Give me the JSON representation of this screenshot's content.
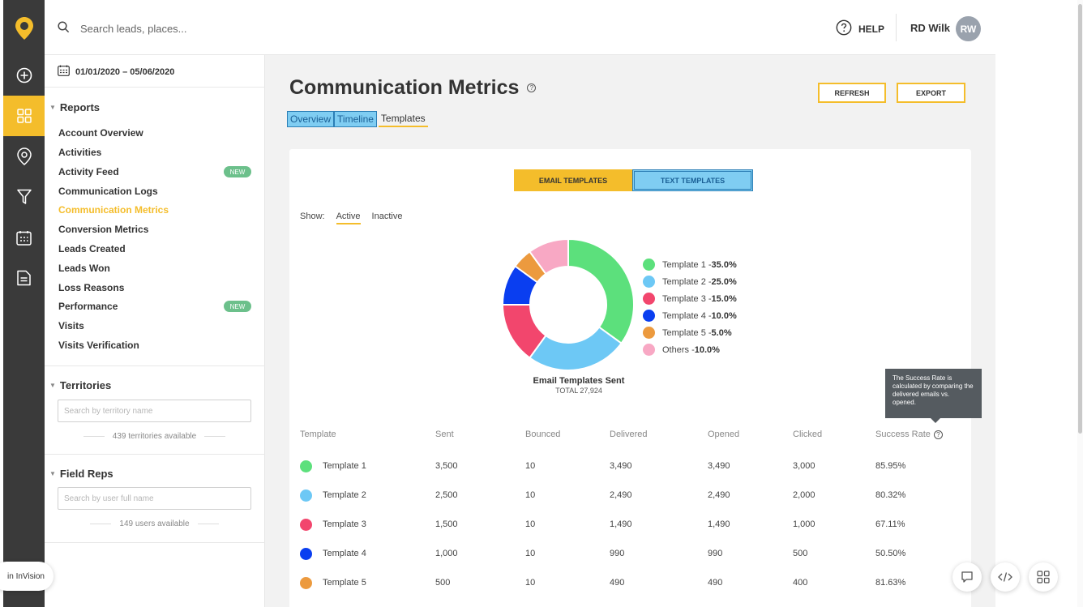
{
  "header": {
    "search_placeholder": "Search leads, places...",
    "help_label": "HELP",
    "user_name": "RD Wilk",
    "user_initials": "RW"
  },
  "rail": {
    "icons": [
      "logo-pin-icon",
      "plus-circle-icon",
      "reports-grid-icon",
      "location-pin-icon",
      "funnel-icon",
      "calendar-icon",
      "document-icon"
    ],
    "active": "reports-grid-icon",
    "accent": "#f4bd2b"
  },
  "sidebar": {
    "date_range": "01/01/2020 – 05/06/2020",
    "reports_heading": "Reports",
    "reports": [
      {
        "label": "Account Overview",
        "badge": ""
      },
      {
        "label": "Activities",
        "badge": ""
      },
      {
        "label": "Activity Feed",
        "badge": "NEW"
      },
      {
        "label": "Communication Logs",
        "badge": ""
      },
      {
        "label": "Communication Metrics",
        "badge": "",
        "active": true
      },
      {
        "label": "Conversion Metrics",
        "badge": ""
      },
      {
        "label": "Leads Created",
        "badge": ""
      },
      {
        "label": "Leads Won",
        "badge": ""
      },
      {
        "label": "Loss Reasons",
        "badge": ""
      },
      {
        "label": "Performance",
        "badge": "NEW"
      },
      {
        "label": "Visits",
        "badge": ""
      },
      {
        "label": "Visits Verification",
        "badge": ""
      }
    ],
    "territories": {
      "heading": "Territories",
      "placeholder": "Search by territory name",
      "available": "439 territories available"
    },
    "field_reps": {
      "heading": "Field Reps",
      "placeholder": "Search by user full name",
      "available": "149 users available"
    }
  },
  "main": {
    "title": "Communication Metrics",
    "refresh_label": "REFRESH",
    "export_label": "EXPORT",
    "tabs": [
      {
        "label": "Overview"
      },
      {
        "label": "Timeline"
      },
      {
        "label": "Templates"
      }
    ],
    "segment": {
      "email": "EMAIL TEMPLATES",
      "text": "TEXT TEMPLATES"
    },
    "show": {
      "label": "Show:",
      "active": "Active",
      "inactive": "Inactive"
    },
    "donut_caption": "Email Templates Sent",
    "donut_total": "TOTAL 27,924",
    "tooltip": "The Success Rate is calculated by comparing the delivered emails vs. opened."
  },
  "chart_data": {
    "type": "pie",
    "slices": [
      {
        "label": "Template 1",
        "value": 35.0,
        "display": "35.0%",
        "color": "#5ce07c"
      },
      {
        "label": "Template 2",
        "value": 25.0,
        "display": "25.0%",
        "color": "#6dc8f5"
      },
      {
        "label": "Template 3",
        "value": 15.0,
        "display": "15.0%",
        "color": "#f2466d"
      },
      {
        "label": "Template 4",
        "value": 10.0,
        "display": "10.0%",
        "color": "#0a3ef0"
      },
      {
        "label": "Template 5",
        "value": 5.0,
        "display": "5.0%",
        "color": "#ec9a3e"
      },
      {
        "label": "Others",
        "value": 10.0,
        "display": "10.0%",
        "color": "#f8a8c4"
      }
    ],
    "legend": "right"
  },
  "table": {
    "headers": [
      "Template",
      "Sent",
      "Bounced",
      "Delivered",
      "Opened",
      "Clicked",
      "Success Rate"
    ],
    "rows": [
      {
        "name": "Template 1",
        "color": "#5ce07c",
        "sent": "3,500",
        "bounced": "10",
        "delivered": "3,490",
        "opened": "3,490",
        "clicked": "3,000",
        "rate": "85.95%"
      },
      {
        "name": "Template 2",
        "color": "#6dc8f5",
        "sent": "2,500",
        "bounced": "10",
        "delivered": "2,490",
        "opened": "2,490",
        "clicked": "2,000",
        "rate": "80.32%"
      },
      {
        "name": "Template 3",
        "color": "#f2466d",
        "sent": "1,500",
        "bounced": "10",
        "delivered": "1,490",
        "opened": "1,490",
        "clicked": "1,000",
        "rate": "67.11%"
      },
      {
        "name": "Template 4",
        "color": "#0a3ef0",
        "sent": "1,000",
        "bounced": "10",
        "delivered": "990",
        "opened": "990",
        "clicked": "500",
        "rate": "50.50%"
      },
      {
        "name": "Template 5",
        "color": "#ec9a3e",
        "sent": "500",
        "bounced": "10",
        "delivered": "490",
        "opened": "490",
        "clicked": "400",
        "rate": "81.63%"
      }
    ]
  },
  "footer": {
    "invision_label": "in InVision"
  }
}
